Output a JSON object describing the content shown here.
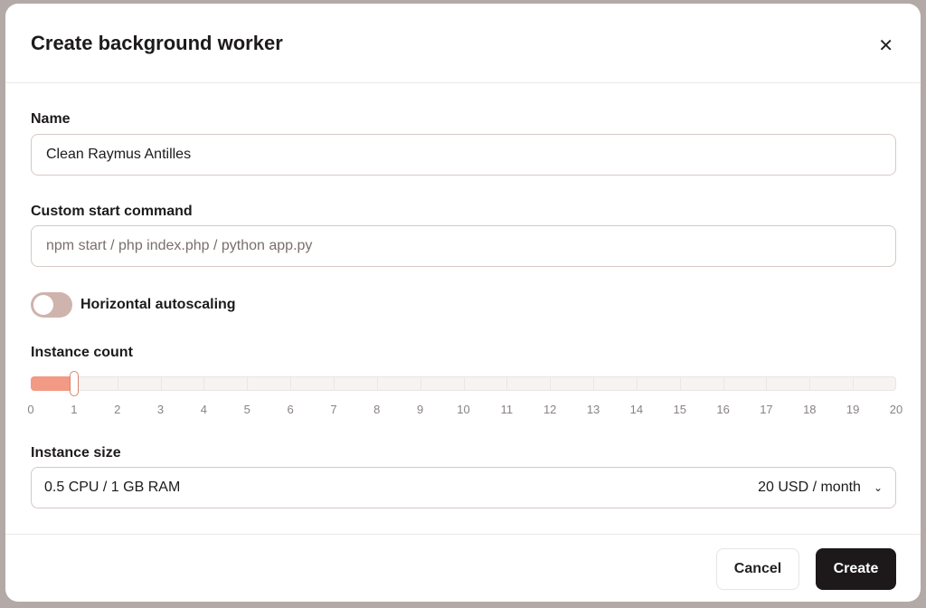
{
  "dialog": {
    "title": "Create background worker",
    "close_icon": "close-icon"
  },
  "name": {
    "label": "Name",
    "value": "Clean Raymus Antilles"
  },
  "command": {
    "label": "Custom start command",
    "placeholder": "npm start / php index.php / python app.py",
    "value": ""
  },
  "autoscaling": {
    "label": "Horizontal autoscaling",
    "enabled": false
  },
  "instance_count": {
    "label": "Instance count",
    "value": 1,
    "min": 0,
    "max": 20,
    "ticks": [
      "0",
      "1",
      "2",
      "3",
      "4",
      "5",
      "6",
      "7",
      "8",
      "9",
      "10",
      "11",
      "12",
      "13",
      "14",
      "15",
      "16",
      "17",
      "18",
      "19",
      "20"
    ],
    "fill_color": "#f29a84"
  },
  "instance_size": {
    "label": "Instance size",
    "selected": "0.5 CPU / 1 GB RAM",
    "price": "20 USD / month"
  },
  "footer": {
    "cancel": "Cancel",
    "create": "Create"
  }
}
